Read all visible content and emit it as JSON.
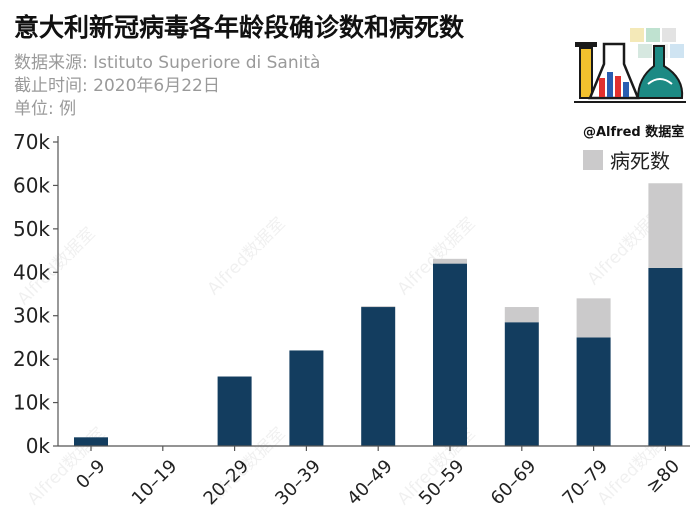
{
  "header": {
    "title": "意大利新冠病毒各年龄段确诊数和病死数",
    "source": "数据来源: Istituto Superiore di Sanità",
    "date": "截止时间: 2020年6月22日",
    "unit": "单位: 例"
  },
  "logo": {
    "text": "@Alfred 数据室"
  },
  "watermark": "Alfred数据室",
  "colors": {
    "confirmed": "#133d5f",
    "deaths": "#cbcacb",
    "axis": "#555555",
    "tick_text": "#222222"
  },
  "chart_data": {
    "type": "bar",
    "stacked": true,
    "title": "意大利新冠病毒各年龄段确诊数和病死数",
    "categories": [
      "0–9",
      "10–19",
      "20–29",
      "30–39",
      "40–49",
      "50–59",
      "60–69",
      "70–79",
      "≥80"
    ],
    "series": [
      {
        "name": "",
        "color": "#133d5f",
        "values": [
          2000,
          0,
          16000,
          22000,
          32000,
          42000,
          28500,
          25000,
          41000
        ]
      },
      {
        "name": "病死数",
        "color": "#cbcacb",
        "values": [
          0,
          0,
          0,
          0,
          200,
          1100,
          3500,
          9000,
          19500
        ]
      }
    ],
    "yticks": [
      0,
      10000,
      20000,
      30000,
      40000,
      50000,
      60000,
      70000
    ],
    "ytick_labels": [
      "0k",
      "10k",
      "20k",
      "30k",
      "40k",
      "50k",
      "60k",
      "70k"
    ],
    "ylim": [
      0,
      70000
    ],
    "xlabel": "",
    "ylabel": "",
    "grid": false,
    "legend": "top-right"
  }
}
